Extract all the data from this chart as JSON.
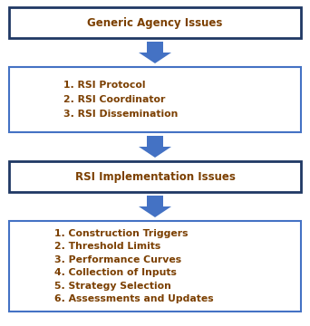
{
  "background_color": "#ffffff",
  "box1_text": "Generic Agency Issues",
  "box2_text": "1. RSI Protocol\n2. RSI Coordinator\n3. RSI Dissemination",
  "box3_text": "RSI Implementation Issues",
  "box4_text": "1. Construction Triggers\n2. Threshold Limits\n3. Performance Curves\n4. Collection of Inputs\n5. Strategy Selection\n6. Assessments and Updates",
  "box1_edge_color": "#1F3864",
  "box2_edge_color": "#4472C4",
  "box3_edge_color": "#1F3864",
  "box4_edge_color": "#4472C4",
  "box_fill_color": "#ffffff",
  "text_color": "#7B3F00",
  "title_fontsize": 8.5,
  "body_fontsize": 7.8,
  "arrow_color": "#4472C4",
  "figure_width": 3.42,
  "figure_height": 3.6,
  "dpi": 100
}
